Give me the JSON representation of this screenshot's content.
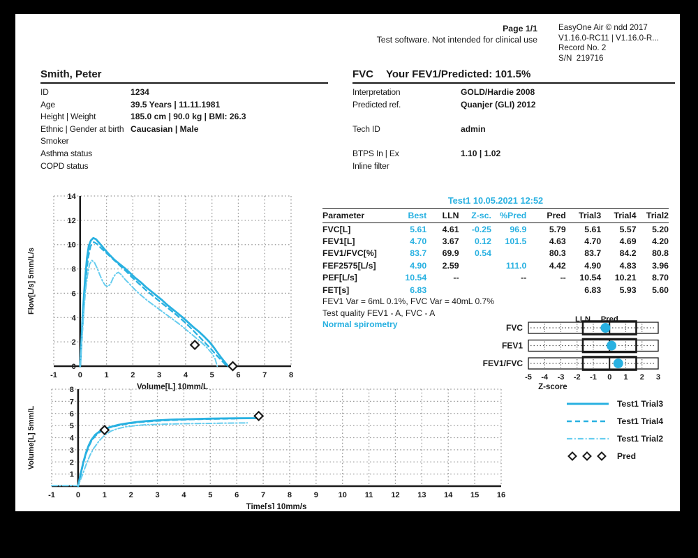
{
  "colors": {
    "accent": "#29b1e1",
    "accent_light": "#67cdef",
    "text": "#1a1a1a",
    "grid": "#9a9a9a"
  },
  "page": {
    "header": {
      "page_label": "Page 1/1",
      "disclaimer": "Test software. Not intended for clinical use",
      "device_lines": [
        "EasyOne Air © ndd 2017",
        "V1.16.0-RC11 | V1.16.0-R...",
        "Record No. 2",
        "S/N  219716"
      ]
    },
    "patient": {
      "name": "Smith, Peter",
      "rows": [
        {
          "label": "ID",
          "value": "1234"
        },
        {
          "label": "Age",
          "value": "39.5 Years | 11.11.1981"
        },
        {
          "label": "Height | Weight",
          "value": "185.0 cm | 90.0 kg | BMI: 26.3"
        },
        {
          "label": "Ethnic | Gender at birth",
          "value": "Caucasian | Male"
        },
        {
          "label": "Smoker",
          "value": ""
        },
        {
          "label": "Asthma status",
          "value": ""
        },
        {
          "label": "COPD status",
          "value": ""
        }
      ]
    },
    "test": {
      "code": "FVC",
      "headline": "Your FEV1/Predicted: 101.5%",
      "rows": [
        {
          "label": "Interpretation",
          "value": "GOLD/Hardie 2008"
        },
        {
          "label": "Predicted ref.",
          "value": "Quanjer (GLI) 2012"
        },
        {
          "label": "",
          "value": ""
        },
        {
          "label": "Tech ID",
          "value": "admin"
        },
        {
          "label": "",
          "value": ""
        },
        {
          "label": "BTPS In | Ex",
          "value": "1.10 | 1.02"
        },
        {
          "label": "Inline filter",
          "value": ""
        }
      ]
    },
    "results_table": {
      "title": "Test1 10.05.2021 12:52",
      "columns": [
        "Parameter",
        "Best",
        "LLN",
        "Z-sc.",
        "%Pred",
        "Pred",
        "Trial3",
        "Trial4",
        "Trial2"
      ],
      "cyan_columns": [
        1,
        3,
        4
      ],
      "rows": [
        [
          "FVC[L]",
          "5.61",
          "4.61",
          "-0.25",
          "96.9",
          "5.79",
          "5.61",
          "5.57",
          "5.20"
        ],
        [
          "FEV1[L]",
          "4.70",
          "3.67",
          "0.12",
          "101.5",
          "4.63",
          "4.70",
          "4.69",
          "4.20"
        ],
        [
          "FEV1/FVC[%]",
          "83.7",
          "69.9",
          "0.54",
          "",
          "80.3",
          "83.7",
          "84.2",
          "80.8"
        ],
        [
          "FEF2575[L/s]",
          "4.90",
          "2.59",
          "",
          "111.0",
          "4.42",
          "4.90",
          "4.83",
          "3.96"
        ],
        [
          "PEF[L/s]",
          "10.54",
          "--",
          "",
          "--",
          "--",
          "10.54",
          "10.21",
          "8.70"
        ],
        [
          "FET[s]",
          "6.83",
          "",
          "",
          "",
          "",
          "6.83",
          "5.93",
          "5.60"
        ]
      ]
    },
    "notes": {
      "line1": "FEV1 Var = 6mL 0.1%, FVC Var = 40mL 0.7%",
      "line2": "Test quality FEV1 - A, FVC - A",
      "line3": "Normal spirometry"
    },
    "legend": {
      "entries": [
        {
          "swatch": "solid",
          "color_key": "accent",
          "label": "Test1 Trial3"
        },
        {
          "swatch": "dashed",
          "color_key": "accent",
          "label": "Test1 Trial4"
        },
        {
          "swatch": "dashdot",
          "color_key": "accent_light",
          "label": "Test1 Trial2"
        },
        {
          "swatch": "diamonds",
          "color_key": "text",
          "label": "Pred"
        }
      ]
    }
  },
  "chart_data": [
    {
      "type": "line",
      "id": "flow-volume",
      "xlabel": "Volume[L] 10mm/L",
      "ylabel": "Flow[L/s] 5mm/L/s",
      "xlim": [
        -1,
        8
      ],
      "ylim": [
        0,
        14
      ],
      "xtick_step": 1,
      "ytick_step": 2,
      "ytick_min": 0,
      "grid": true,
      "legend_position": "none",
      "series": [
        {
          "name": "Test1 Trial3",
          "style": "solid",
          "color_key": "accent",
          "points": [
            [
              0,
              0
            ],
            [
              0.04,
              1.6
            ],
            [
              0.08,
              3.4
            ],
            [
              0.13,
              5.3
            ],
            [
              0.19,
              7.2
            ],
            [
              0.26,
              8.9
            ],
            [
              0.33,
              9.9
            ],
            [
              0.41,
              10.35
            ],
            [
              0.5,
              10.54
            ],
            [
              0.6,
              10.45
            ],
            [
              0.7,
              10.2
            ],
            [
              0.82,
              9.9
            ],
            [
              0.95,
              9.55
            ],
            [
              1.1,
              9.2
            ],
            [
              1.3,
              8.75
            ],
            [
              1.5,
              8.4
            ],
            [
              1.7,
              8.05
            ],
            [
              1.9,
              7.65
            ],
            [
              2.1,
              7.25
            ],
            [
              2.3,
              6.9
            ],
            [
              2.5,
              6.5
            ],
            [
              2.7,
              6.15
            ],
            [
              2.9,
              5.8
            ],
            [
              3.1,
              5.45
            ],
            [
              3.3,
              5.05
            ],
            [
              3.5,
              4.7
            ],
            [
              3.7,
              4.35
            ],
            [
              3.9,
              4.0
            ],
            [
              4.1,
              3.6
            ],
            [
              4.3,
              3.2
            ],
            [
              4.5,
              2.85
            ],
            [
              4.7,
              2.45
            ],
            [
              4.9,
              2.0
            ],
            [
              5.05,
              1.6
            ],
            [
              5.2,
              1.15
            ],
            [
              5.35,
              0.7
            ],
            [
              5.5,
              0.3
            ],
            [
              5.61,
              0
            ]
          ]
        },
        {
          "name": "Test1 Trial4",
          "style": "dashed",
          "color_key": "accent",
          "points": [
            [
              0,
              0
            ],
            [
              0.05,
              1.7
            ],
            [
              0.1,
              3.5
            ],
            [
              0.16,
              5.5
            ],
            [
              0.23,
              7.5
            ],
            [
              0.31,
              9.0
            ],
            [
              0.4,
              9.9
            ],
            [
              0.52,
              10.21
            ],
            [
              0.64,
              10.05
            ],
            [
              0.78,
              9.75
            ],
            [
              0.95,
              9.4
            ],
            [
              1.15,
              9.0
            ],
            [
              1.35,
              8.6
            ],
            [
              1.55,
              8.2
            ],
            [
              1.75,
              7.8
            ],
            [
              1.95,
              7.35
            ],
            [
              2.15,
              6.95
            ],
            [
              2.35,
              6.55
            ],
            [
              2.55,
              6.15
            ],
            [
              2.75,
              5.8
            ],
            [
              2.95,
              5.45
            ],
            [
              3.15,
              5.1
            ],
            [
              3.35,
              4.75
            ],
            [
              3.55,
              4.4
            ],
            [
              3.75,
              4.05
            ],
            [
              3.95,
              3.65
            ],
            [
              4.15,
              3.25
            ],
            [
              4.35,
              2.8
            ],
            [
              4.55,
              2.35
            ],
            [
              4.75,
              1.9
            ],
            [
              4.95,
              1.45
            ],
            [
              5.15,
              0.95
            ],
            [
              5.35,
              0.5
            ],
            [
              5.5,
              0.15
            ],
            [
              5.57,
              0
            ]
          ]
        },
        {
          "name": "Test1 Trial2",
          "style": "dashdot",
          "color_key": "accent_light",
          "points": [
            [
              0,
              0
            ],
            [
              0.06,
              2.0
            ],
            [
              0.13,
              4.2
            ],
            [
              0.2,
              6.1
            ],
            [
              0.28,
              7.5
            ],
            [
              0.36,
              8.4
            ],
            [
              0.45,
              8.7
            ],
            [
              0.55,
              8.5
            ],
            [
              0.65,
              8.05
            ],
            [
              0.75,
              7.5
            ],
            [
              0.85,
              7.0
            ],
            [
              0.95,
              6.65
            ],
            [
              1.05,
              6.55
            ],
            [
              1.15,
              6.75
            ],
            [
              1.25,
              7.25
            ],
            [
              1.35,
              7.6
            ],
            [
              1.45,
              7.72
            ],
            [
              1.55,
              7.55
            ],
            [
              1.7,
              7.15
            ],
            [
              1.9,
              6.7
            ],
            [
              2.1,
              6.25
            ],
            [
              2.3,
              5.85
            ],
            [
              2.55,
              5.4
            ],
            [
              2.8,
              5.0
            ],
            [
              3.05,
              4.6
            ],
            [
              3.3,
              4.2
            ],
            [
              3.55,
              3.8
            ],
            [
              3.8,
              3.4
            ],
            [
              4.05,
              2.95
            ],
            [
              4.3,
              2.5
            ],
            [
              4.55,
              2.05
            ],
            [
              4.8,
              1.55
            ],
            [
              5.0,
              1.05
            ],
            [
              5.12,
              0.6
            ],
            [
              5.2,
              0
            ]
          ]
        }
      ],
      "pred_markers": {
        "name": "Pred",
        "points": [
          [
            4.35,
            1.75
          ],
          [
            5.79,
            0
          ]
        ]
      }
    },
    {
      "type": "line",
      "id": "volume-time",
      "xlabel": "Time[s] 10mm/s",
      "ylabel": "Volume[L] 5mm/L",
      "xlim": [
        -1,
        16
      ],
      "ylim": [
        0,
        8
      ],
      "xtick_step": 1,
      "ytick_step": 1,
      "ytick_min": 1,
      "grid": true,
      "legend_position": "right",
      "series": [
        {
          "name": "Test1 Trial3",
          "style": "solid",
          "color_key": "accent",
          "points": [
            [
              0,
              0
            ],
            [
              0.1,
              1.05
            ],
            [
              0.2,
              2.0
            ],
            [
              0.3,
              2.75
            ],
            [
              0.4,
              3.35
            ],
            [
              0.5,
              3.8
            ],
            [
              0.65,
              4.25
            ],
            [
              0.8,
              4.5
            ],
            [
              1.0,
              4.7
            ],
            [
              1.2,
              4.87
            ],
            [
              1.5,
              5.05
            ],
            [
              1.8,
              5.17
            ],
            [
              2.2,
              5.29
            ],
            [
              2.6,
              5.37
            ],
            [
              3.0,
              5.43
            ],
            [
              3.5,
              5.49
            ],
            [
              4.0,
              5.52
            ],
            [
              4.5,
              5.55
            ],
            [
              5.0,
              5.57
            ],
            [
              5.5,
              5.59
            ],
            [
              6.0,
              5.6
            ],
            [
              6.83,
              5.61
            ]
          ]
        },
        {
          "name": "Test1 Trial4",
          "style": "dashed",
          "color_key": "accent",
          "points": [
            [
              0,
              0
            ],
            [
              0.1,
              1.0
            ],
            [
              0.2,
              1.9
            ],
            [
              0.3,
              2.65
            ],
            [
              0.4,
              3.25
            ],
            [
              0.5,
              3.7
            ],
            [
              0.65,
              4.15
            ],
            [
              0.8,
              4.42
            ],
            [
              1.0,
              4.69
            ],
            [
              1.2,
              4.84
            ],
            [
              1.5,
              5.0
            ],
            [
              1.9,
              5.16
            ],
            [
              2.3,
              5.27
            ],
            [
              2.8,
              5.36
            ],
            [
              3.3,
              5.42
            ],
            [
              3.8,
              5.47
            ],
            [
              4.3,
              5.5
            ],
            [
              4.8,
              5.53
            ],
            [
              5.3,
              5.55
            ],
            [
              5.93,
              5.57
            ]
          ]
        },
        {
          "name": "Test1 Trial2",
          "style": "dashdot",
          "color_key": "accent_light",
          "points": [
            [
              -1,
              0.04
            ],
            [
              -0.3,
              0.04
            ],
            [
              0,
              0.05
            ],
            [
              0.15,
              0.85
            ],
            [
              0.3,
              1.75
            ],
            [
              0.45,
              2.55
            ],
            [
              0.6,
              3.15
            ],
            [
              0.8,
              3.75
            ],
            [
              1.0,
              4.2
            ],
            [
              1.25,
              4.55
            ],
            [
              1.5,
              4.75
            ],
            [
              1.8,
              4.9
            ],
            [
              2.2,
              5.0
            ],
            [
              2.6,
              5.07
            ],
            [
              3.0,
              5.1
            ],
            [
              3.5,
              5.13
            ],
            [
              4.0,
              5.15
            ],
            [
              4.5,
              5.17
            ],
            [
              5.0,
              5.18
            ],
            [
              5.6,
              5.2
            ],
            [
              6.4,
              5.22
            ]
          ]
        }
      ],
      "pred_markers": {
        "name": "Pred",
        "points": [
          [
            1.0,
            4.63
          ],
          [
            6.83,
            5.79
          ]
        ]
      }
    },
    {
      "type": "zscore",
      "id": "zscore",
      "range": [
        -5,
        3
      ],
      "lln": -1.645,
      "uln": 1.645,
      "lln_label": "LLN",
      "pred_label": "Pred",
      "axis_label": "Z-score",
      "rows": [
        {
          "label": "FVC",
          "value": -0.25
        },
        {
          "label": "FEV1",
          "value": 0.12
        },
        {
          "label": "FEV1/FVC",
          "value": 0.54
        }
      ]
    }
  ]
}
